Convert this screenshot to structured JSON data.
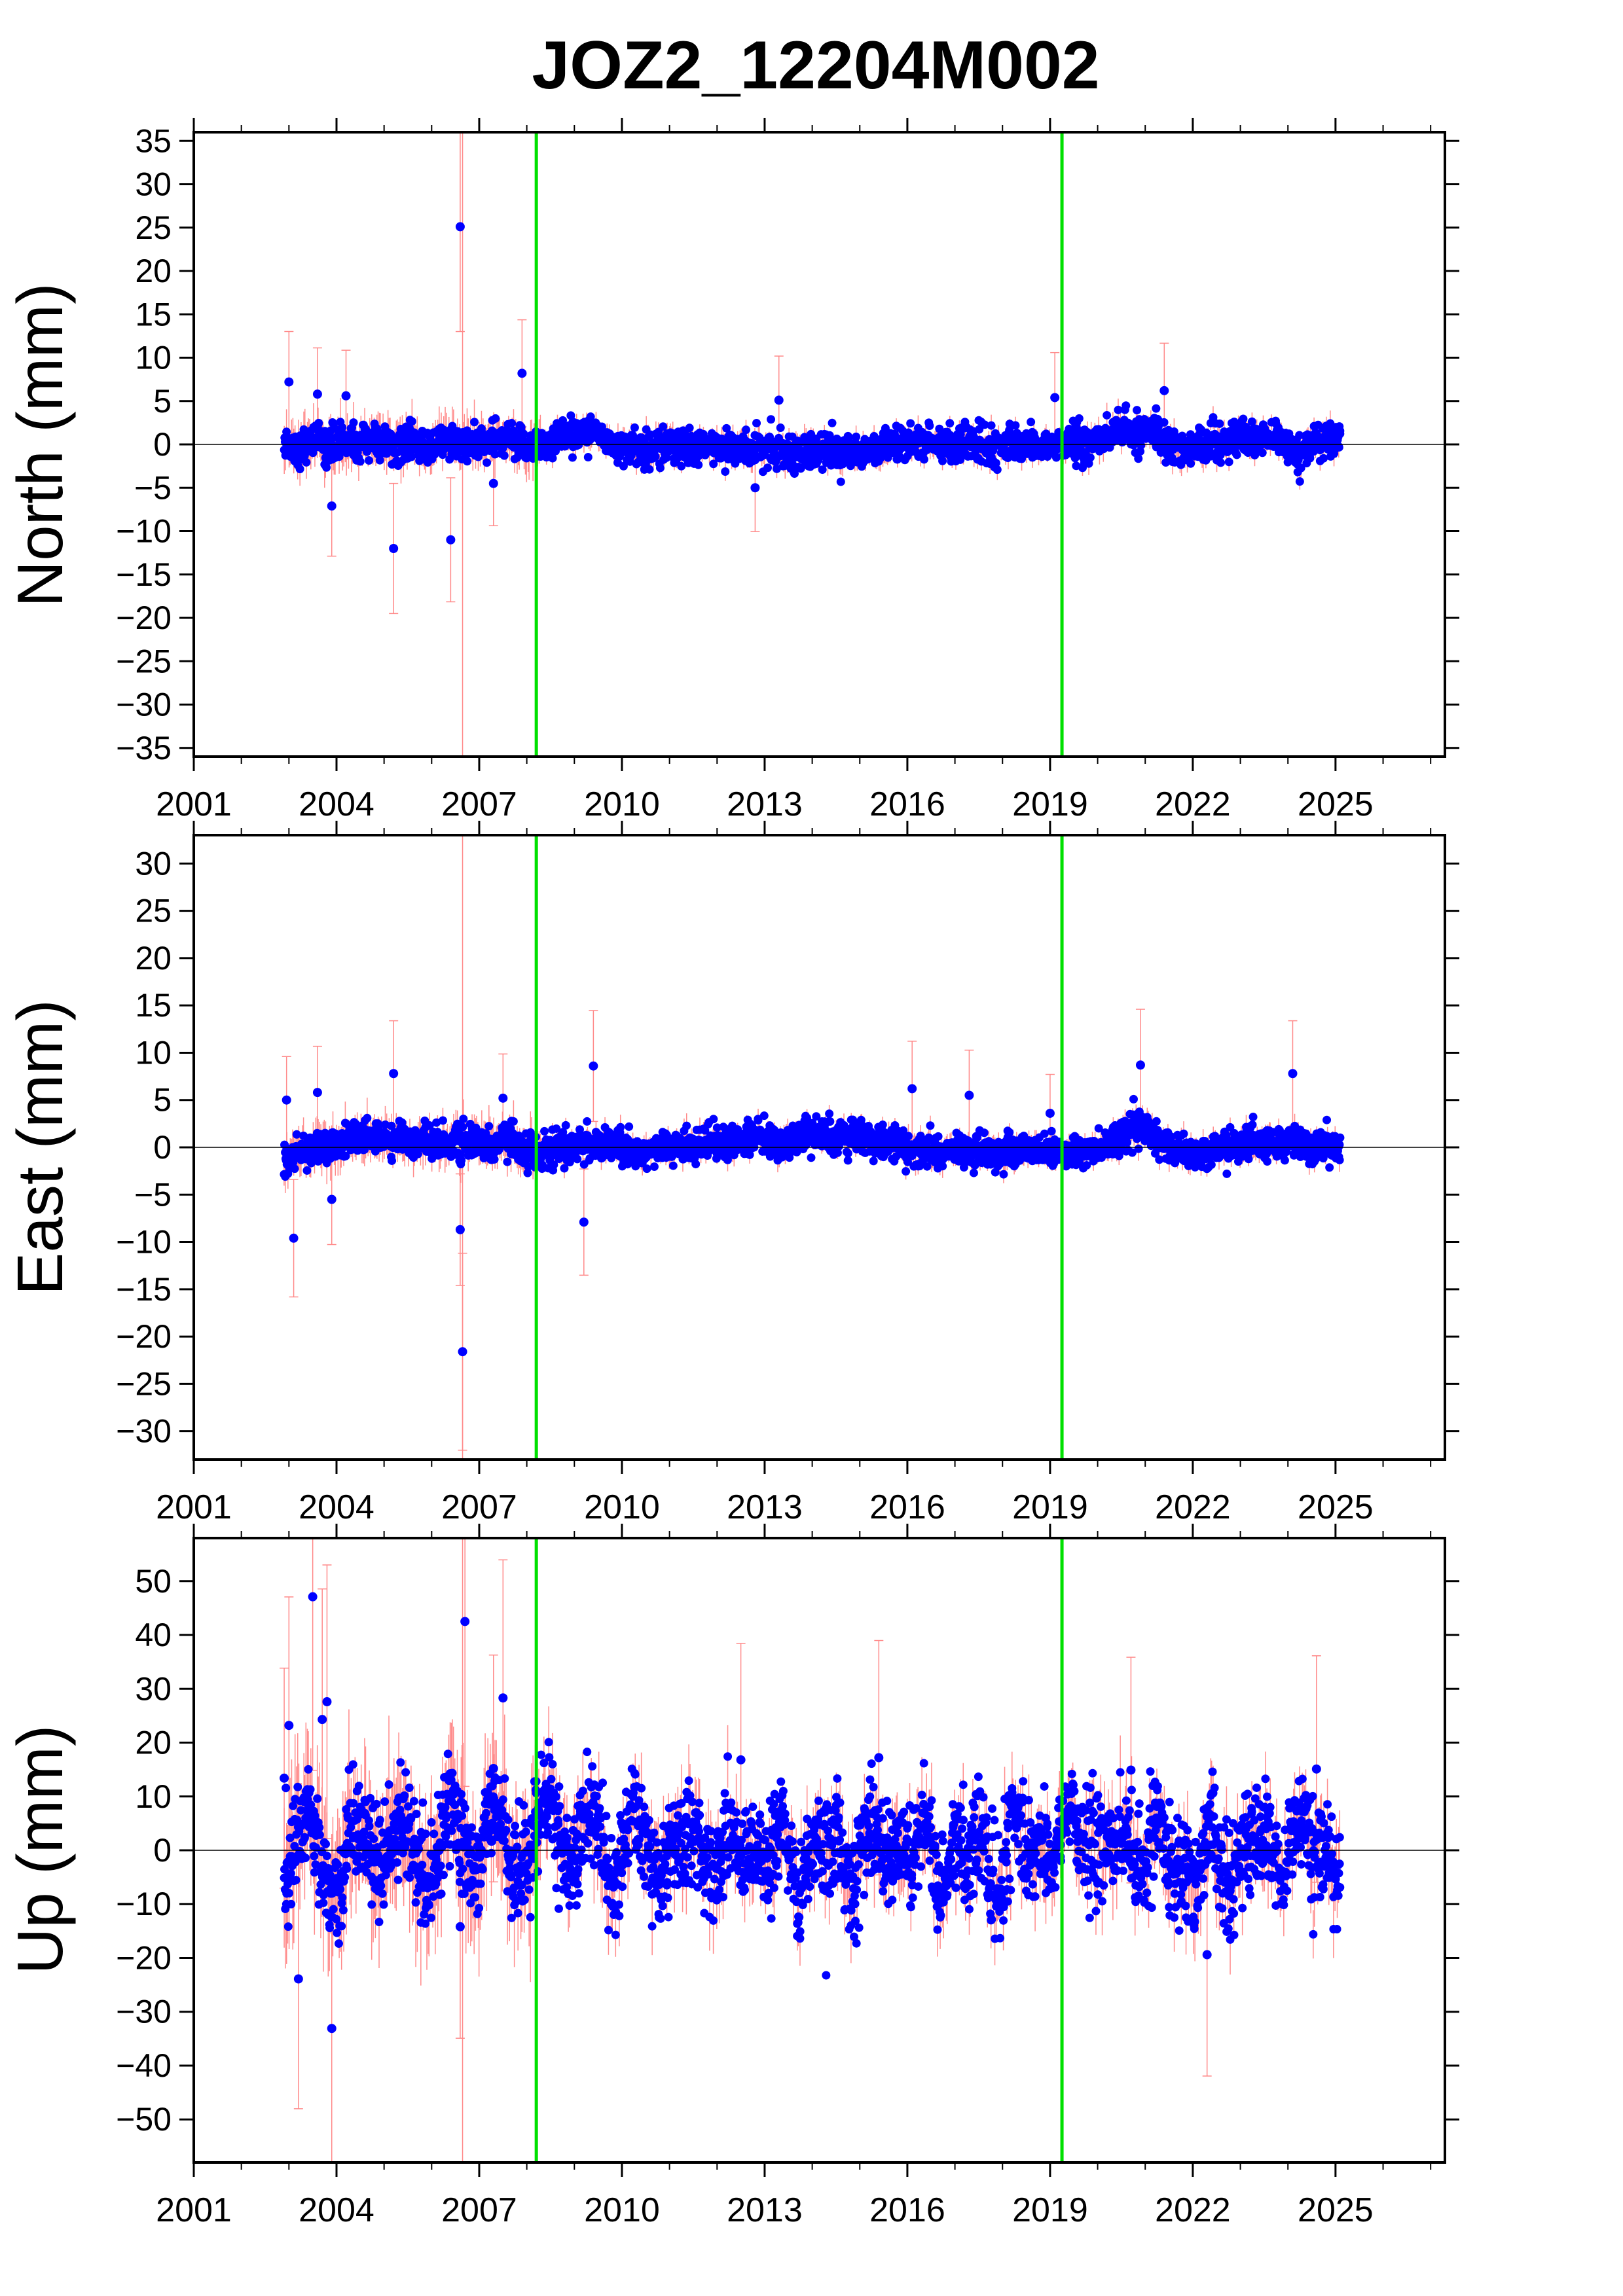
{
  "title": "JOZ2_12204M002",
  "colors": {
    "point": "#0000ff",
    "error_bar": "#ff8a8a",
    "event_line": "#00e000",
    "zero_line": "#000000",
    "frame": "#000000"
  },
  "chart_data": [
    {
      "type": "scatter",
      "component": "north",
      "ylabel": "North (mm)",
      "xlim": [
        2001,
        2027.3
      ],
      "ylim": [
        -36,
        36
      ],
      "xticks": [
        2001,
        2004,
        2007,
        2010,
        2013,
        2016,
        2019,
        2022,
        2025
      ],
      "xtick_labels": [
        "2001",
        "2004",
        "2007",
        "2010",
        "2013",
        "2016",
        "2019",
        "2022",
        "2025"
      ],
      "yticks": [
        -35,
        -30,
        -25,
        -20,
        -15,
        -10,
        -5,
        0,
        5,
        10,
        15,
        20,
        25,
        30,
        35
      ],
      "ytick_labels": [
        "−35",
        "−30",
        "−25",
        "−20",
        "−15",
        "−10",
        "−5",
        "0",
        "5",
        "10",
        "15",
        "20",
        "25",
        "30",
        "35"
      ],
      "event_lines": [
        2008.2,
        2019.25
      ],
      "zero_line": 0,
      "grid": false,
      "series": [
        {
          "x": [
            2002.9,
            2003.2,
            2003.5,
            2003.8,
            2004.1,
            2004.4,
            2004.7,
            2005.0,
            2005.3,
            2005.6,
            2005.9,
            2006.2,
            2006.5,
            2006.8,
            2007.1,
            2007.4,
            2007.7,
            2008.0,
            2008.3,
            2008.6,
            2008.9,
            2009.2,
            2009.5,
            2009.8,
            2010.1,
            2010.4,
            2010.7,
            2011.0,
            2011.3,
            2011.6,
            2011.9,
            2012.2,
            2012.5,
            2012.8,
            2013.1,
            2013.4,
            2013.7,
            2014.0,
            2014.3,
            2014.6,
            2014.9,
            2015.2,
            2015.5,
            2015.8,
            2016.1,
            2016.4,
            2016.7,
            2017.0,
            2017.3,
            2017.6,
            2017.9,
            2018.2,
            2018.5,
            2018.8,
            2019.1,
            2019.4,
            2019.7,
            2020.0,
            2020.3,
            2020.6,
            2020.9,
            2021.2,
            2021.5,
            2021.8,
            2022.1,
            2022.4,
            2022.7,
            2023.0,
            2023.3,
            2023.6,
            2023.9,
            2024.2,
            2024.5,
            2024.8,
            2025.1
          ],
          "y": [
            0.4,
            -0.6,
            0.8,
            -0.3,
            0.5,
            -0.2,
            0.6,
            0.1,
            -0.4,
            0.3,
            -0.5,
            0.4,
            0.0,
            0.2,
            -0.1,
            0.3,
            0.5,
            -0.2,
            0.0,
            0.6,
            1.2,
            1.4,
            0.9,
            0.3,
            -0.2,
            -0.6,
            -0.4,
            0.1,
            -0.3,
            -0.7,
            -0.2,
            0.2,
            -0.5,
            -0.8,
            -0.4,
            -0.6,
            -0.9,
            -1.0,
            -0.7,
            -1.2,
            -0.8,
            -0.6,
            -0.9,
            -0.3,
            0.2,
            0.4,
            -0.1,
            0.0,
            0.3,
            -0.2,
            -0.4,
            0.1,
            0.2,
            -0.3,
            -0.2,
            0.4,
            -0.1,
            0.5,
            1.2,
            1.6,
            0.9,
            1.8,
            0.4,
            -0.6,
            -0.2,
            0.7,
            0.3,
            0.9,
            0.2,
            0.6,
            0.1,
            -1.4,
            -0.3,
            0.8,
            0.7
          ]
        }
      ],
      "outliers": [
        [
          2003.0,
          7.2
        ],
        [
          2003.6,
          5.8
        ],
        [
          2003.9,
          -7.1
        ],
        [
          2005.2,
          -12.0
        ],
        [
          2006.4,
          -11.0
        ],
        [
          2006.6,
          25.1
        ],
        [
          2007.9,
          8.2
        ],
        [
          2007.3,
          -4.5
        ],
        [
          2013.3,
          5.1
        ],
        [
          2019.1,
          5.4
        ],
        [
          2021.4,
          6.2
        ],
        [
          2004.2,
          5.6
        ],
        [
          2012.8,
          -5.0
        ]
      ],
      "envelope_half_width": 2.2
    },
    {
      "type": "scatter",
      "component": "east",
      "ylabel": "East (mm)",
      "xlim": [
        2001,
        2027.3
      ],
      "ylim": [
        -33,
        33
      ],
      "xticks": [
        2001,
        2004,
        2007,
        2010,
        2013,
        2016,
        2019,
        2022,
        2025
      ],
      "xtick_labels": [
        "2001",
        "2004",
        "2007",
        "2010",
        "2013",
        "2016",
        "2019",
        "2022",
        "2025"
      ],
      "yticks": [
        -30,
        -25,
        -20,
        -15,
        -10,
        -5,
        0,
        5,
        10,
        15,
        20,
        25,
        30
      ],
      "ytick_labels": [
        "−30",
        "−25",
        "−20",
        "−15",
        "−10",
        "−5",
        "0",
        "5",
        "10",
        "15",
        "20",
        "25",
        "30"
      ],
      "event_lines": [
        2008.2,
        2019.25
      ],
      "zero_line": 0,
      "grid": false,
      "series": [
        {
          "x": [
            2002.9,
            2003.2,
            2003.5,
            2003.8,
            2004.1,
            2004.4,
            2004.7,
            2005.0,
            2005.3,
            2005.6,
            2005.9,
            2006.2,
            2006.5,
            2006.8,
            2007.1,
            2007.4,
            2007.7,
            2008.0,
            2008.3,
            2008.6,
            2008.9,
            2009.2,
            2009.5,
            2009.8,
            2010.1,
            2010.4,
            2010.7,
            2011.0,
            2011.3,
            2011.6,
            2011.9,
            2012.2,
            2012.5,
            2012.8,
            2013.1,
            2013.4,
            2013.7,
            2014.0,
            2014.3,
            2014.6,
            2014.9,
            2015.2,
            2015.5,
            2015.8,
            2016.1,
            2016.4,
            2016.7,
            2017.0,
            2017.3,
            2017.6,
            2017.9,
            2018.2,
            2018.5,
            2018.8,
            2019.1,
            2019.4,
            2019.7,
            2020.0,
            2020.3,
            2020.6,
            2020.9,
            2021.2,
            2021.5,
            2021.8,
            2022.1,
            2022.4,
            2022.7,
            2023.0,
            2023.3,
            2023.6,
            2023.9,
            2024.2,
            2024.5,
            2024.8,
            2025.1
          ],
          "y": [
            -1.2,
            -0.6,
            -0.3,
            0.2,
            0.5,
            0.9,
            1.2,
            0.8,
            1.1,
            0.7,
            0.9,
            0.5,
            0.6,
            0.3,
            0.4,
            0.2,
            0.6,
            -0.2,
            -0.5,
            -0.2,
            0.0,
            0.4,
            0.3,
            0.1,
            0.2,
            -0.4,
            -0.2,
            0.3,
            0.1,
            0.4,
            0.6,
            0.5,
            0.9,
            1.1,
            0.7,
            0.3,
            0.8,
            1.2,
            1.5,
            0.9,
            1.3,
            0.8,
            0.4,
            0.2,
            -0.1,
            -0.3,
            -0.6,
            -0.2,
            -0.5,
            -0.3,
            -0.7,
            -0.4,
            -0.2,
            0.1,
            -0.6,
            -0.3,
            -0.5,
            0.0,
            0.6,
            1.2,
            2.4,
            1.2,
            0.1,
            -0.3,
            -0.8,
            -0.4,
            0.1,
            0.3,
            0.4,
            0.2,
            0.5,
            0.8,
            0.3,
            0.2,
            -0.3
          ]
        }
      ],
      "outliers": [
        [
          2002.95,
          5.0
        ],
        [
          2003.1,
          -9.6
        ],
        [
          2003.6,
          5.8
        ],
        [
          2003.9,
          -5.5
        ],
        [
          2005.2,
          7.8
        ],
        [
          2006.6,
          -8.7
        ],
        [
          2006.65,
          -21.6
        ],
        [
          2007.5,
          5.2
        ],
        [
          2009.2,
          -7.9
        ],
        [
          2009.4,
          8.6
        ],
        [
          2016.1,
          6.2
        ],
        [
          2017.3,
          5.5
        ],
        [
          2020.9,
          8.7
        ],
        [
          2024.1,
          7.8
        ],
        [
          2019.0,
          3.6
        ]
      ],
      "envelope_half_width": 1.9
    },
    {
      "type": "scatter",
      "component": "up",
      "ylabel": "Up (mm)",
      "xlim": [
        2001,
        2027.3
      ],
      "ylim": [
        -58,
        58
      ],
      "xticks": [
        2001,
        2004,
        2007,
        2010,
        2013,
        2016,
        2019,
        2022,
        2025
      ],
      "xtick_labels": [
        "2001",
        "2004",
        "2007",
        "2010",
        "2013",
        "2016",
        "2019",
        "2022",
        "2025"
      ],
      "yticks": [
        -50,
        -40,
        -30,
        -20,
        -10,
        0,
        10,
        20,
        30,
        40,
        50
      ],
      "ytick_labels": [
        "−50",
        "−40",
        "−30",
        "−20",
        "−10",
        "0",
        "10",
        "20",
        "30",
        "40",
        "50"
      ],
      "event_lines": [
        2008.2,
        2019.25
      ],
      "zero_line": 0,
      "grid": false,
      "series": [
        {
          "x": [
            2002.9,
            2003.2,
            2003.5,
            2003.8,
            2004.1,
            2004.4,
            2004.7,
            2005.0,
            2005.3,
            2005.6,
            2005.9,
            2006.2,
            2006.5,
            2006.8,
            2007.1,
            2007.4,
            2007.7,
            2008.0,
            2008.3,
            2008.6,
            2008.9,
            2009.2,
            2009.5,
            2009.8,
            2010.1,
            2010.4,
            2010.7,
            2011.0,
            2011.3,
            2011.6,
            2011.9,
            2012.2,
            2012.5,
            2012.8,
            2013.1,
            2013.4,
            2013.7,
            2014.0,
            2014.3,
            2014.6,
            2014.9,
            2015.2,
            2015.5,
            2015.8,
            2016.1,
            2016.4,
            2016.7,
            2017.0,
            2017.3,
            2017.6,
            2017.9,
            2018.2,
            2018.5,
            2018.8,
            2019.1,
            2019.4,
            2019.7,
            2020.0,
            2020.3,
            2020.6,
            2020.9,
            2021.2,
            2021.5,
            2021.8,
            2022.1,
            2022.4,
            2022.7,
            2023.0,
            2023.3,
            2023.6,
            2023.9,
            2024.2,
            2024.5,
            2024.8,
            2025.1
          ],
          "y": [
            -4.0,
            2.0,
            5.0,
            -3.0,
            -6.0,
            3.0,
            4.0,
            -2.0,
            2.0,
            3.0,
            -3.0,
            1.0,
            5.0,
            0.0,
            2.0,
            4.0,
            -2.0,
            1.0,
            3.0,
            5.0,
            -1.0,
            4.0,
            2.0,
            -4.0,
            3.0,
            1.0,
            -5.0,
            2.0,
            -3.0,
            4.0,
            -2.0,
            3.0,
            -5.0,
            4.0,
            -2.0,
            2.0,
            -6.0,
            3.0,
            -4.0,
            2.0,
            -5.0,
            4.0,
            -3.0,
            5.0,
            -4.0,
            3.0,
            -6.0,
            4.0,
            -5.0,
            3.0,
            -6.0,
            4.0,
            -3.0,
            5.0,
            -2.0,
            5.0,
            3.0,
            4.0,
            -3.0,
            3.0,
            -2.0,
            2.0,
            -5.0,
            3.0,
            -6.0,
            2.0,
            -4.0,
            3.0,
            -3.0,
            2.0,
            -4.0,
            4.0,
            -3.0,
            2.0,
            -4.0
          ]
        }
      ],
      "outliers": [
        [
          2003.0,
          23.2
        ],
        [
          2003.5,
          47.1
        ],
        [
          2003.7,
          24.3
        ],
        [
          2003.8,
          27.6
        ],
        [
          2003.2,
          -23.9
        ],
        [
          2003.9,
          -33.1
        ],
        [
          2006.7,
          42.5
        ],
        [
          2007.5,
          28.3
        ],
        [
          2006.6,
          -14.2
        ],
        [
          2002.9,
          13.4
        ],
        [
          2007.3,
          15.2
        ],
        [
          2012.5,
          16.8
        ],
        [
          2015.4,
          17.2
        ],
        [
          2022.3,
          -19.4
        ],
        [
          2020.7,
          14.9
        ],
        [
          2024.6,
          15.1
        ]
      ],
      "envelope_half_width": 10.5
    }
  ]
}
